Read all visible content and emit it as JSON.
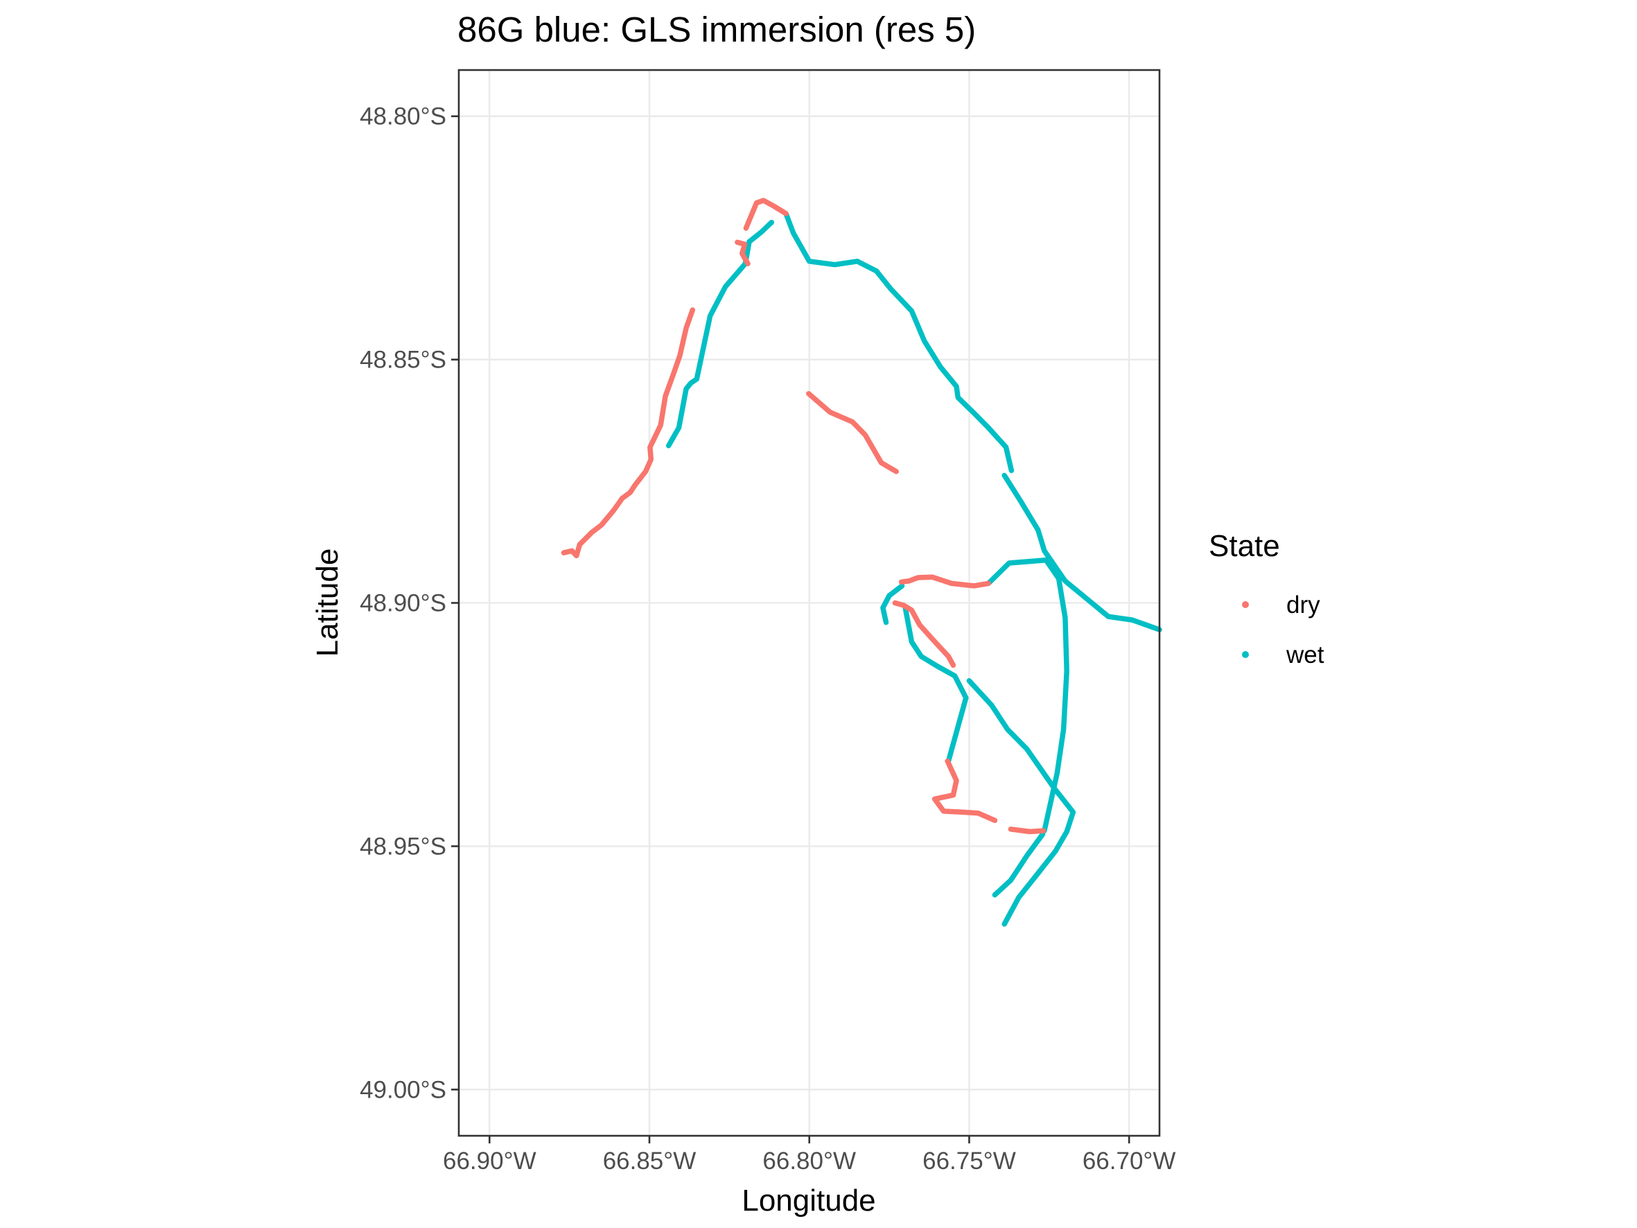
{
  "chart_data": {
    "type": "line",
    "title": "86G blue: GLS immersion (res 5)",
    "xlabel": "Longitude",
    "ylabel": "Latitude",
    "xlim": [
      -66.9096,
      -66.6905
    ],
    "ylim": [
      -49.0095,
      -48.7905
    ],
    "x_ticks": [
      {
        "value": -66.9,
        "label": "66.90°W"
      },
      {
        "value": -66.85,
        "label": "66.85°W"
      },
      {
        "value": -66.8,
        "label": "66.80°W"
      },
      {
        "value": -66.75,
        "label": "66.75°W"
      },
      {
        "value": -66.7,
        "label": "66.70°W"
      }
    ],
    "y_ticks": [
      {
        "value": -48.8,
        "label": "48.80°S"
      },
      {
        "value": -48.85,
        "label": "48.85°S"
      },
      {
        "value": -48.9,
        "label": "48.90°S"
      },
      {
        "value": -48.95,
        "label": "48.95°S"
      },
      {
        "value": -49.0,
        "label": "49.00°S"
      }
    ],
    "grid": true,
    "legend": {
      "title": "State",
      "position": "right",
      "entries": [
        {
          "label": "dry",
          "color": "#F8766D"
        },
        {
          "label": "wet",
          "color": "#00BFC4"
        }
      ]
    },
    "series": [
      {
        "name": "dry",
        "color": "#F8766D",
        "segments": [
          [
            [
              -66.8768,
              -48.8897
            ],
            [
              -66.8742,
              -48.8893
            ],
            [
              -66.8728,
              -48.8903
            ],
            [
              -66.8718,
              -48.888
            ],
            [
              -66.868,
              -48.8855
            ],
            [
              -66.865,
              -48.884
            ],
            [
              -66.8612,
              -48.881
            ],
            [
              -66.8585,
              -48.8785
            ],
            [
              -66.856,
              -48.8773
            ],
            [
              -66.8545,
              -48.8758
            ],
            [
              -66.8512,
              -48.873
            ],
            [
              -66.8495,
              -48.8705
            ],
            [
              -66.8498,
              -48.868
            ],
            [
              -66.8465,
              -48.8635
            ],
            [
              -66.845,
              -48.8575
            ],
            [
              -66.8425,
              -48.853
            ],
            [
              -66.8405,
              -48.8492
            ],
            [
              -66.8385,
              -48.8435
            ],
            [
              -66.8365,
              -48.8398
            ]
          ],
          [
            [
              -66.8225,
              -48.8259
            ],
            [
              -66.8202,
              -48.8263
            ],
            [
              -66.821,
              -48.8282
            ],
            [
              -66.8192,
              -48.8303
            ]
          ],
          [
            [
              -66.8198,
              -48.823
            ],
            [
              -66.8165,
              -48.8178
            ],
            [
              -66.8143,
              -48.8173
            ],
            [
              -66.811,
              -48.8185
            ],
            [
              -66.8073,
              -48.82
            ]
          ],
          [
            [
              -66.8002,
              -48.857
            ],
            [
              -66.7935,
              -48.8608
            ],
            [
              -66.7865,
              -48.8628
            ],
            [
              -66.7825,
              -48.8655
            ],
            [
              -66.7775,
              -48.8712
            ],
            [
              -66.7728,
              -48.873
            ]
          ],
          [
            [
              -66.7712,
              -48.8957
            ],
            [
              -66.7688,
              -48.8955
            ],
            [
              -66.766,
              -48.8948
            ],
            [
              -66.7615,
              -48.8947
            ],
            [
              -66.7555,
              -48.896
            ],
            [
              -66.7485,
              -48.8965
            ],
            [
              -66.744,
              -48.896
            ]
          ],
          [
            [
              -66.7732,
              -48.9
            ],
            [
              -66.7705,
              -48.9005
            ],
            [
              -66.768,
              -48.9015
            ],
            [
              -66.7655,
              -48.9045
            ],
            [
              -66.761,
              -48.9078
            ],
            [
              -66.7565,
              -48.911
            ],
            [
              -66.755,
              -48.9128
            ]
          ],
          [
            [
              -66.7568,
              -48.9325
            ],
            [
              -66.754,
              -48.9365
            ],
            [
              -66.755,
              -48.9395
            ],
            [
              -66.7608,
              -48.9403
            ],
            [
              -66.758,
              -48.9428
            ],
            [
              -66.752,
              -48.943
            ],
            [
              -66.7472,
              -48.9432
            ],
            [
              -66.742,
              -48.9447
            ]
          ],
          [
            [
              -66.737,
              -48.9465
            ],
            [
              -66.731,
              -48.947
            ],
            [
              -66.7268,
              -48.9468
            ]
          ]
        ]
      },
      {
        "name": "wet",
        "color": "#00BFC4",
        "segments": [
          [
            [
              -66.844,
              -48.8677
            ],
            [
              -66.8408,
              -48.864
            ],
            [
              -66.8385,
              -48.856
            ],
            [
              -66.837,
              -48.8548
            ],
            [
              -66.8352,
              -48.854
            ],
            [
              -66.831,
              -48.841
            ],
            [
              -66.8262,
              -48.835
            ],
            [
              -66.82,
              -48.8303
            ],
            [
              -66.8188,
              -48.8258
            ],
            [
              -66.815,
              -48.8238
            ],
            [
              -66.8118,
              -48.8218
            ]
          ],
          [
            [
              -66.8073,
              -48.82
            ],
            [
              -66.805,
              -48.824
            ],
            [
              -66.8,
              -48.8298
            ],
            [
              -66.792,
              -48.8305
            ],
            [
              -66.785,
              -48.8298
            ],
            [
              -66.779,
              -48.8318
            ],
            [
              -66.7745,
              -48.8355
            ],
            [
              -66.768,
              -48.84
            ],
            [
              -66.764,
              -48.8462
            ],
            [
              -66.759,
              -48.8515
            ],
            [
              -66.754,
              -48.8555
            ],
            [
              -66.7535,
              -48.8578
            ],
            [
              -66.7485,
              -48.861
            ],
            [
              -66.744,
              -48.864
            ],
            [
              -66.7385,
              -48.868
            ],
            [
              -66.7368,
              -48.8728
            ]
          ],
          [
            [
              -66.739,
              -48.8738
            ],
            [
              -66.734,
              -48.879
            ],
            [
              -66.7285,
              -48.885
            ],
            [
              -66.7265,
              -48.8893
            ],
            [
              -66.72,
              -48.8955
            ],
            [
              -66.7065,
              -48.9028
            ],
            [
              -66.699,
              -48.9035
            ],
            [
              -66.6905,
              -48.9055
            ]
          ],
          [
            [
              -66.744,
              -48.896
            ],
            [
              -66.7375,
              -48.8918
            ],
            [
              -66.726,
              -48.8912
            ],
            [
              -66.722,
              -48.895
            ],
            [
              -66.72,
              -48.903
            ],
            [
              -66.7195,
              -48.914
            ],
            [
              -66.7205,
              -48.926
            ],
            [
              -66.7225,
              -48.935
            ],
            [
              -66.7265,
              -48.9468
            ]
          ],
          [
            [
              -66.727,
              -48.9475
            ],
            [
              -66.732,
              -48.952
            ],
            [
              -66.737,
              -48.957
            ],
            [
              -66.742,
              -48.96
            ]
          ],
          [
            [
              -66.771,
              -48.8965
            ],
            [
              -66.775,
              -48.8985
            ],
            [
              -66.777,
              -48.901
            ],
            [
              -66.776,
              -48.904
            ]
          ],
          [
            [
              -66.77,
              -48.901
            ],
            [
              -66.768,
              -48.908
            ],
            [
              -66.765,
              -48.911
            ],
            [
              -66.76,
              -48.913
            ],
            [
              -66.7545,
              -48.915
            ],
            [
              -66.751,
              -48.9195
            ],
            [
              -66.7565,
              -48.9325
            ]
          ],
          [
            [
              -66.75,
              -48.916
            ],
            [
              -66.743,
              -48.921
            ],
            [
              -66.738,
              -48.926
            ],
            [
              -66.732,
              -48.93
            ],
            [
              -66.7235,
              -48.938
            ],
            [
              -66.7175,
              -48.943
            ],
            [
              -66.7195,
              -48.947
            ],
            [
              -66.723,
              -48.951
            ],
            [
              -66.729,
              -48.956
            ],
            [
              -66.7345,
              -48.9605
            ],
            [
              -66.739,
              -48.966
            ]
          ]
        ]
      }
    ]
  }
}
